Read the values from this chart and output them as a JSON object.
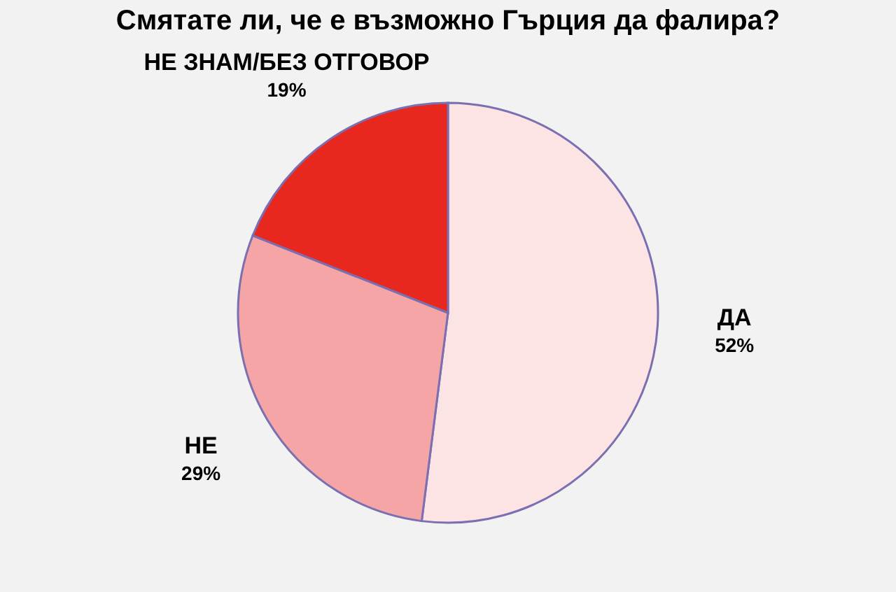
{
  "chart_data": {
    "type": "pie",
    "title": "Смятате ли, че е възможно Гърция да фалира?",
    "categories": [
      "ДА",
      "НЕ",
      "НЕ ЗНАМ/БЕЗ ОТГОВОР"
    ],
    "values": [
      52,
      29,
      19
    ],
    "colors": [
      "#fde4e4",
      "#f5a5a5",
      "#e8281e"
    ],
    "value_labels": [
      "52%",
      "29%",
      "19%"
    ],
    "legend": false
  }
}
